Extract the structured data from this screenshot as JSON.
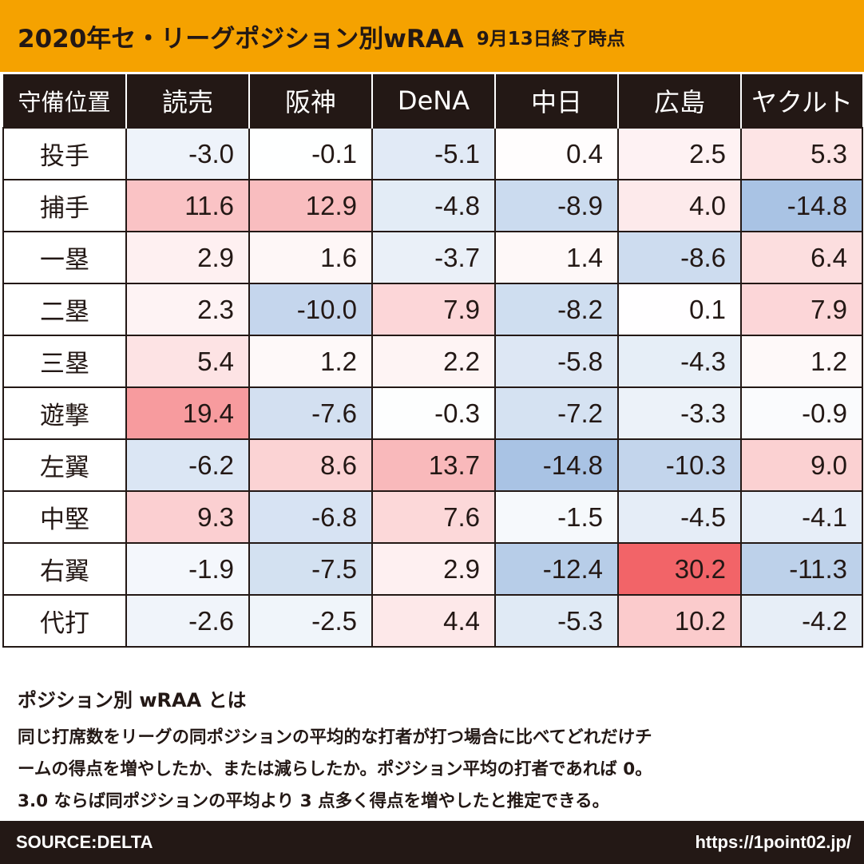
{
  "title": {
    "main": "2020年セ・リーグポジション別wRAA",
    "sub": "9月13日終了時点"
  },
  "chart_data": {
    "type": "table",
    "corner_label": "守備位置",
    "columns": [
      "読売",
      "阪神",
      "DeNA",
      "中日",
      "広島",
      "ヤクルト"
    ],
    "rows": [
      "投手",
      "捕手",
      "一塁",
      "二塁",
      "三塁",
      "遊撃",
      "左翼",
      "中堅",
      "右翼",
      "代打"
    ],
    "values": [
      [
        "-3.0",
        "-0.1",
        "-5.1",
        "0.4",
        "2.5",
        "5.3"
      ],
      [
        "11.6",
        "12.9",
        "-4.8",
        "-8.9",
        "4.0",
        "-14.8"
      ],
      [
        "2.9",
        "1.6",
        "-3.7",
        "1.4",
        "-8.6",
        "6.4"
      ],
      [
        "2.3",
        "-10.0",
        "7.9",
        "-8.2",
        "0.1",
        "7.9"
      ],
      [
        "5.4",
        "1.2",
        "2.2",
        "-5.8",
        "-4.3",
        "1.2"
      ],
      [
        "19.4",
        "-7.6",
        "-0.3",
        "-7.2",
        "-3.3",
        "-0.9"
      ],
      [
        "-6.2",
        "8.6",
        "13.7",
        "-14.8",
        "-10.3",
        "9.0"
      ],
      [
        "9.3",
        "-6.8",
        "7.6",
        "-1.5",
        "-4.5",
        "-4.1"
      ],
      [
        "-1.9",
        "-7.5",
        "2.9",
        "-12.4",
        "30.2",
        "-11.3"
      ],
      [
        "-2.6",
        "-2.5",
        "4.4",
        "-5.3",
        "10.2",
        "-4.2"
      ]
    ],
    "color_scale": {
      "positive": "#f26468",
      "negative": "#a9c3e4",
      "zero": "#ffffff",
      "max_abs": 30.2
    }
  },
  "explanation": {
    "title": "ポジション別 wRAA とは",
    "lines": [
      "同じ打席数をリーグの同ポジションの平均的な打者が打つ場合に比べてどれだけチ",
      "ームの得点を増やしたか、または減らしたか。ポジション平均の打者であれば 0。",
      "3.0 ならば同ポジションの平均より 3 点多く得点を増やしたと推定できる。"
    ]
  },
  "footer": {
    "source": "SOURCE:DELTA",
    "url": "https://1point02.jp/"
  }
}
